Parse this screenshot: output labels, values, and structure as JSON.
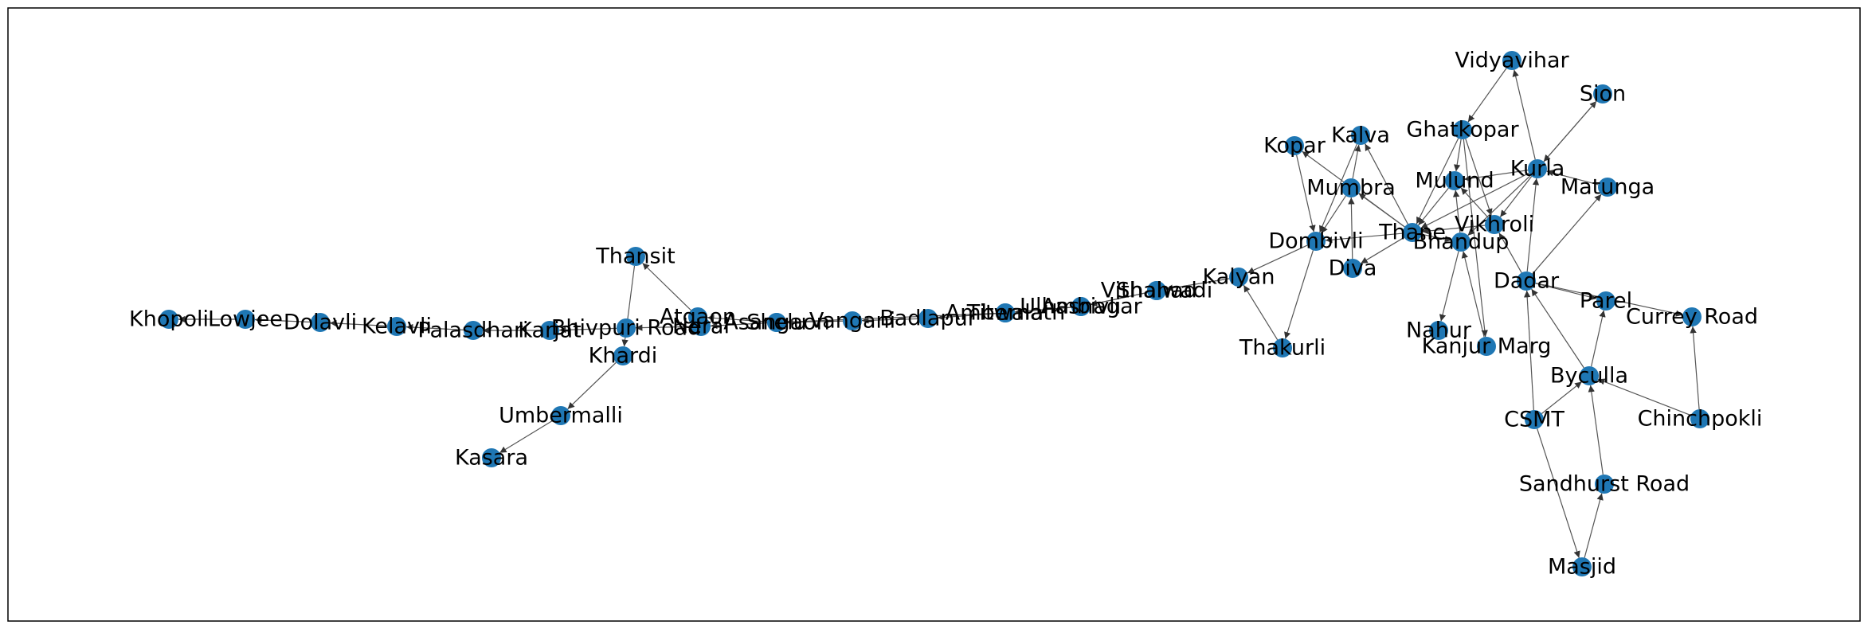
{
  "graph": {
    "directed": true,
    "node_color": "#1f77b4",
    "edge_color": "#555555",
    "nodes": [
      "Khopoli",
      "Lowjee",
      "Dolavli",
      "Kelavli",
      "Palasdhari",
      "Karjat",
      "Bhivpuri Road",
      "Neral",
      "Shelu",
      "Vangani",
      "Badlapur",
      "Ambernath",
      "Ulhasnagar",
      "Vithalwadi",
      "Kalyan",
      "Thakurli",
      "Dombivli",
      "Kopar",
      "Diva",
      "Mumbra",
      "Kalva",
      "Thane",
      "Mulund",
      "Nahur",
      "Bhandup",
      "Kanjur Marg",
      "Vikhroli",
      "Ghatkopar",
      "Vidyavihar",
      "Kurla",
      "Sion",
      "Matunga",
      "Dadar",
      "Parel",
      "Currey Road",
      "Chinchpokli",
      "Byculla",
      "Sandhurst Road",
      "Masjid",
      "CSMT",
      "Thansit",
      "Khardi",
      "Atgaon",
      "Asangaon",
      "Umbermalli",
      "Kasara",
      "Titwala",
      "Ambivli",
      "Shahad"
    ],
    "edges": [
      [
        "Lowjee",
        "Khopoli"
      ],
      [
        "Dolavli",
        "Lowjee"
      ],
      [
        "Kelavli",
        "Dolavli"
      ],
      [
        "Palasdhari",
        "Kelavli"
      ],
      [
        "Karjat",
        "Palasdhari"
      ],
      [
        "Bhivpuri Road",
        "Karjat"
      ],
      [
        "Neral",
        "Bhivpuri Road"
      ],
      [
        "Shelu",
        "Neral"
      ],
      [
        "Vangani",
        "Shelu"
      ],
      [
        "Badlapur",
        "Vangani"
      ],
      [
        "Ambernath",
        "Badlapur"
      ],
      [
        "Ulhasnagar",
        "Ambernath"
      ],
      [
        "Vithalwadi",
        "Ulhasnagar"
      ],
      [
        "Kalyan",
        "Vithalwadi"
      ],
      [
        "Dombivli",
        "Kalyan"
      ],
      [
        "Thakurli",
        "Kalyan"
      ],
      [
        "Dombivli",
        "Thakurli"
      ],
      [
        "Kopar",
        "Dombivli"
      ],
      [
        "Kalva",
        "Dombivli"
      ],
      [
        "Mumbra",
        "Dombivli"
      ],
      [
        "Thane",
        "Dombivli"
      ],
      [
        "Diva",
        "Mumbra"
      ],
      [
        "Mumbra",
        "Kalva"
      ],
      [
        "Thane",
        "Kalva"
      ],
      [
        "Thane",
        "Kopar"
      ],
      [
        "Thane",
        "Mumbra"
      ],
      [
        "Thane",
        "Diva"
      ],
      [
        "Mulund",
        "Thane"
      ],
      [
        "Ghatkopar",
        "Thane"
      ],
      [
        "Kurla",
        "Thane"
      ],
      [
        "Vikhroli",
        "Thane"
      ],
      [
        "Bhandup",
        "Mulund"
      ],
      [
        "Bhandup",
        "Nahur"
      ],
      [
        "Ghatkopar",
        "Mulund"
      ],
      [
        "Kanjur Marg",
        "Bhandup"
      ],
      [
        "Vikhroli",
        "Mulund"
      ],
      [
        "Ghatkopar",
        "Vikhroli"
      ],
      [
        "Ghatkopar",
        "Kanjur Marg"
      ],
      [
        "Kurla",
        "Vidyavihar"
      ],
      [
        "Vidyavihar",
        "Ghatkopar"
      ],
      [
        "Kurla",
        "Vikhroli"
      ],
      [
        "Kurla",
        "Mulund"
      ],
      [
        "Kurla",
        "Bhandup"
      ],
      [
        "Dadar",
        "Kurla"
      ],
      [
        "Dadar",
        "Vikhroli"
      ],
      [
        "Dadar",
        "Matunga"
      ],
      [
        "Matunga",
        "Kurla"
      ],
      [
        "Kurla",
        "Sion"
      ],
      [
        "Sion",
        "Kurla"
      ],
      [
        "Dadar",
        "Parel"
      ],
      [
        "Dadar",
        "Currey Road"
      ],
      [
        "Byculla",
        "Parel"
      ],
      [
        "Byculla",
        "Dadar"
      ],
      [
        "Chinchpokli",
        "Currey Road"
      ],
      [
        "Chinchpokli",
        "Byculla"
      ],
      [
        "CSMT",
        "Byculla"
      ],
      [
        "CSMT",
        "Dadar"
      ],
      [
        "Sandhurst Road",
        "Byculla"
      ],
      [
        "Masjid",
        "Sandhurst Road"
      ],
      [
        "CSMT",
        "Masjid"
      ],
      [
        "Thansit",
        "Khardi"
      ],
      [
        "Atgaon",
        "Thansit"
      ],
      [
        "Khardi",
        "Umbermalli"
      ],
      [
        "Umbermalli",
        "Kasara"
      ],
      [
        "Asangaon",
        "Atgaon"
      ],
      [
        "Titwala",
        "Asangaon"
      ],
      [
        "Ambivli",
        "Titwala"
      ],
      [
        "Shahad",
        "Ambivli"
      ],
      [
        "Kalyan",
        "Shahad"
      ],
      [
        "Thane",
        "Bhandup"
      ]
    ]
  }
}
